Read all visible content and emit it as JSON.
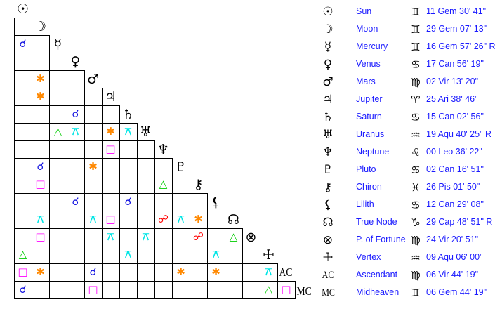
{
  "planets": [
    {
      "glyph": "☉",
      "name": "Sun",
      "sign": "♊",
      "position": "11 Gem 30' 41\""
    },
    {
      "glyph": "☽",
      "name": "Moon",
      "sign": "♊",
      "position": "29 Gem 07' 13\""
    },
    {
      "glyph": "☿",
      "name": "Mercury",
      "sign": "♊",
      "position": "16 Gem 57' 26\" R"
    },
    {
      "glyph": "♀",
      "name": "Venus",
      "sign": "♋",
      "position": "17 Can 56' 19\""
    },
    {
      "glyph": "♂",
      "name": "Mars",
      "sign": "♍",
      "position": "02 Vir 13' 20\""
    },
    {
      "glyph": "♃",
      "name": "Jupiter",
      "sign": "♈",
      "position": "25 Ari 38' 46\""
    },
    {
      "glyph": "♄",
      "name": "Saturn",
      "sign": "♋",
      "position": "15 Can 02' 56\""
    },
    {
      "glyph": "♅",
      "name": "Uranus",
      "sign": "♒",
      "position": "19 Aqu 40' 25\" R"
    },
    {
      "glyph": "♆",
      "name": "Neptune",
      "sign": "♌",
      "position": "00 Leo 36' 22\""
    },
    {
      "glyph": "♇",
      "name": "Pluto",
      "sign": "♋",
      "position": "02 Can 16' 51\""
    },
    {
      "glyph": "⚷",
      "name": "Chiron",
      "sign": "♓",
      "position": "26 Pis 01' 50\""
    },
    {
      "glyph": "⚸",
      "name": "Lilith",
      "sign": "♋",
      "position": "12 Can 29' 08\""
    },
    {
      "glyph": "☊",
      "name": "True Node",
      "sign": "♑",
      "position": "29 Cap 48' 51\" R"
    },
    {
      "glyph": "⊗",
      "name": "P. of Fortune",
      "sign": "♍",
      "position": "24 Vir 20' 51\""
    },
    {
      "glyph": "☩",
      "name": "Vertex",
      "sign": "♒",
      "position": "09 Aqu 06' 00\""
    },
    {
      "glyph": "AC",
      "name": "Ascendant",
      "sign": "♍",
      "position": "06 Vir 44' 19\""
    },
    {
      "glyph": "MC",
      "name": "Midheaven",
      "sign": "♊",
      "position": "06 Gem 44' 19\""
    }
  ],
  "aspect_types": {
    "conjunction": {
      "symbol": "☌",
      "color": "#1010e0"
    },
    "sextile": {
      "symbol": "✱",
      "color": "#ff8800"
    },
    "square": {
      "symbol": "□",
      "color": "#ff00ff"
    },
    "trine": {
      "symbol": "△",
      "color": "#00cc00"
    },
    "quincunx": {
      "symbol": "⚻",
      "color": "#00e5e5"
    },
    "opposition": {
      "symbol": "☍",
      "color": "#ff0000"
    }
  },
  "aspects": [
    {
      "a": "Mercury",
      "b": "Sun",
      "type": "conjunction"
    },
    {
      "a": "Mars",
      "b": "Moon",
      "type": "sextile"
    },
    {
      "a": "Jupiter",
      "b": "Moon",
      "type": "sextile"
    },
    {
      "a": "Saturn",
      "b": "Venus",
      "type": "conjunction"
    },
    {
      "a": "Uranus",
      "b": "Mercury",
      "type": "trine"
    },
    {
      "a": "Uranus",
      "b": "Venus",
      "type": "quincunx"
    },
    {
      "a": "Uranus",
      "b": "Jupiter",
      "type": "sextile"
    },
    {
      "a": "Uranus",
      "b": "Saturn",
      "type": "quincunx"
    },
    {
      "a": "Neptune",
      "b": "Jupiter",
      "type": "square"
    },
    {
      "a": "Pluto",
      "b": "Moon",
      "type": "conjunction"
    },
    {
      "a": "Pluto",
      "b": "Mars",
      "type": "sextile"
    },
    {
      "a": "Chiron",
      "b": "Moon",
      "type": "square"
    },
    {
      "a": "Chiron",
      "b": "Neptune",
      "type": "trine"
    },
    {
      "a": "Lilith",
      "b": "Venus",
      "type": "conjunction"
    },
    {
      "a": "Lilith",
      "b": "Saturn",
      "type": "conjunction"
    },
    {
      "a": "True Node",
      "b": "Moon",
      "type": "quincunx"
    },
    {
      "a": "True Node",
      "b": "Mars",
      "type": "quincunx"
    },
    {
      "a": "True Node",
      "b": "Jupiter",
      "type": "square"
    },
    {
      "a": "True Node",
      "b": "Neptune",
      "type": "opposition"
    },
    {
      "a": "True Node",
      "b": "Pluto",
      "type": "quincunx"
    },
    {
      "a": "True Node",
      "b": "Chiron",
      "type": "sextile"
    },
    {
      "a": "P. of Fortune",
      "b": "Moon",
      "type": "square"
    },
    {
      "a": "P. of Fortune",
      "b": "Jupiter",
      "type": "quincunx"
    },
    {
      "a": "P. of Fortune",
      "b": "Uranus",
      "type": "quincunx"
    },
    {
      "a": "P. of Fortune",
      "b": "Chiron",
      "type": "opposition"
    },
    {
      "a": "P. of Fortune",
      "b": "True Node",
      "type": "trine"
    },
    {
      "a": "Vertex",
      "b": "Sun",
      "type": "trine"
    },
    {
      "a": "Vertex",
      "b": "Saturn",
      "type": "quincunx"
    },
    {
      "a": "Vertex",
      "b": "Lilith",
      "type": "quincunx"
    },
    {
      "a": "Ascendant",
      "b": "Sun",
      "type": "square"
    },
    {
      "a": "Ascendant",
      "b": "Moon",
      "type": "sextile"
    },
    {
      "a": "Ascendant",
      "b": "Mars",
      "type": "conjunction"
    },
    {
      "a": "Ascendant",
      "b": "Pluto",
      "type": "sextile"
    },
    {
      "a": "Ascendant",
      "b": "Lilith",
      "type": "sextile"
    },
    {
      "a": "Ascendant",
      "b": "Vertex",
      "type": "quincunx"
    },
    {
      "a": "Midheaven",
      "b": "Sun",
      "type": "conjunction"
    },
    {
      "a": "Midheaven",
      "b": "Mars",
      "type": "square"
    },
    {
      "a": "Midheaven",
      "b": "Vertex",
      "type": "trine"
    },
    {
      "a": "Midheaven",
      "b": "Ascendant",
      "type": "square"
    }
  ]
}
